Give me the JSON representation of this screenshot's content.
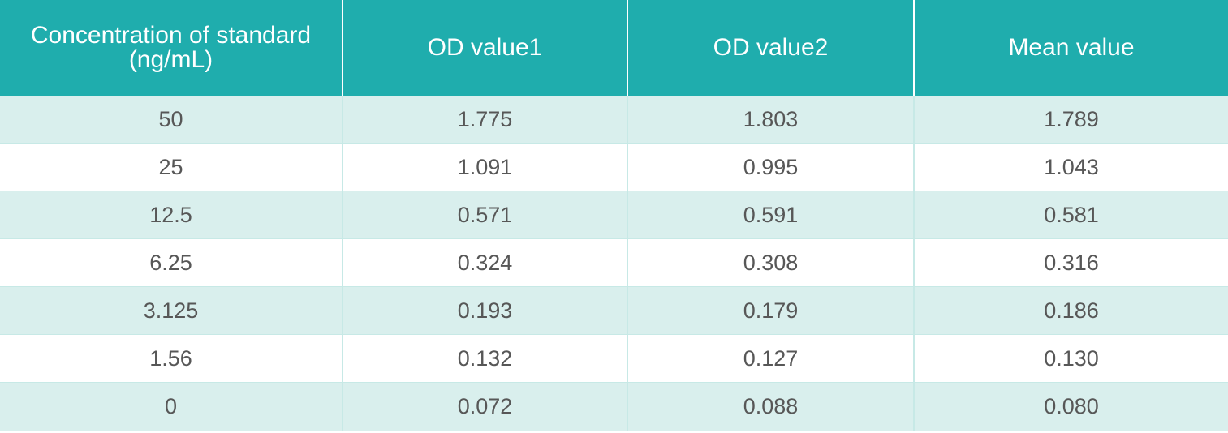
{
  "table": {
    "headers": [
      "Concentration of standard (ng/mL)",
      "OD value1",
      "OD value2",
      "Mean value"
    ],
    "rows": [
      [
        "50",
        "1.775",
        "1.803",
        "1.789"
      ],
      [
        "25",
        "1.091",
        "0.995",
        "1.043"
      ],
      [
        "12.5",
        "0.571",
        "0.591",
        "0.581"
      ],
      [
        "6.25",
        "0.324",
        "0.308",
        "0.316"
      ],
      [
        "3.125",
        "0.193",
        "0.179",
        "0.186"
      ],
      [
        "1.56",
        "0.132",
        "0.127",
        "0.130"
      ],
      [
        "0",
        "0.072",
        "0.088",
        "0.080"
      ]
    ]
  },
  "colors": {
    "header_background": "#1fadad",
    "header_text": "#ffffff",
    "row_shaded": "#d9efed",
    "row_plain": "#ffffff",
    "body_text": "#575757",
    "grid_line": "#c7e9e6"
  }
}
